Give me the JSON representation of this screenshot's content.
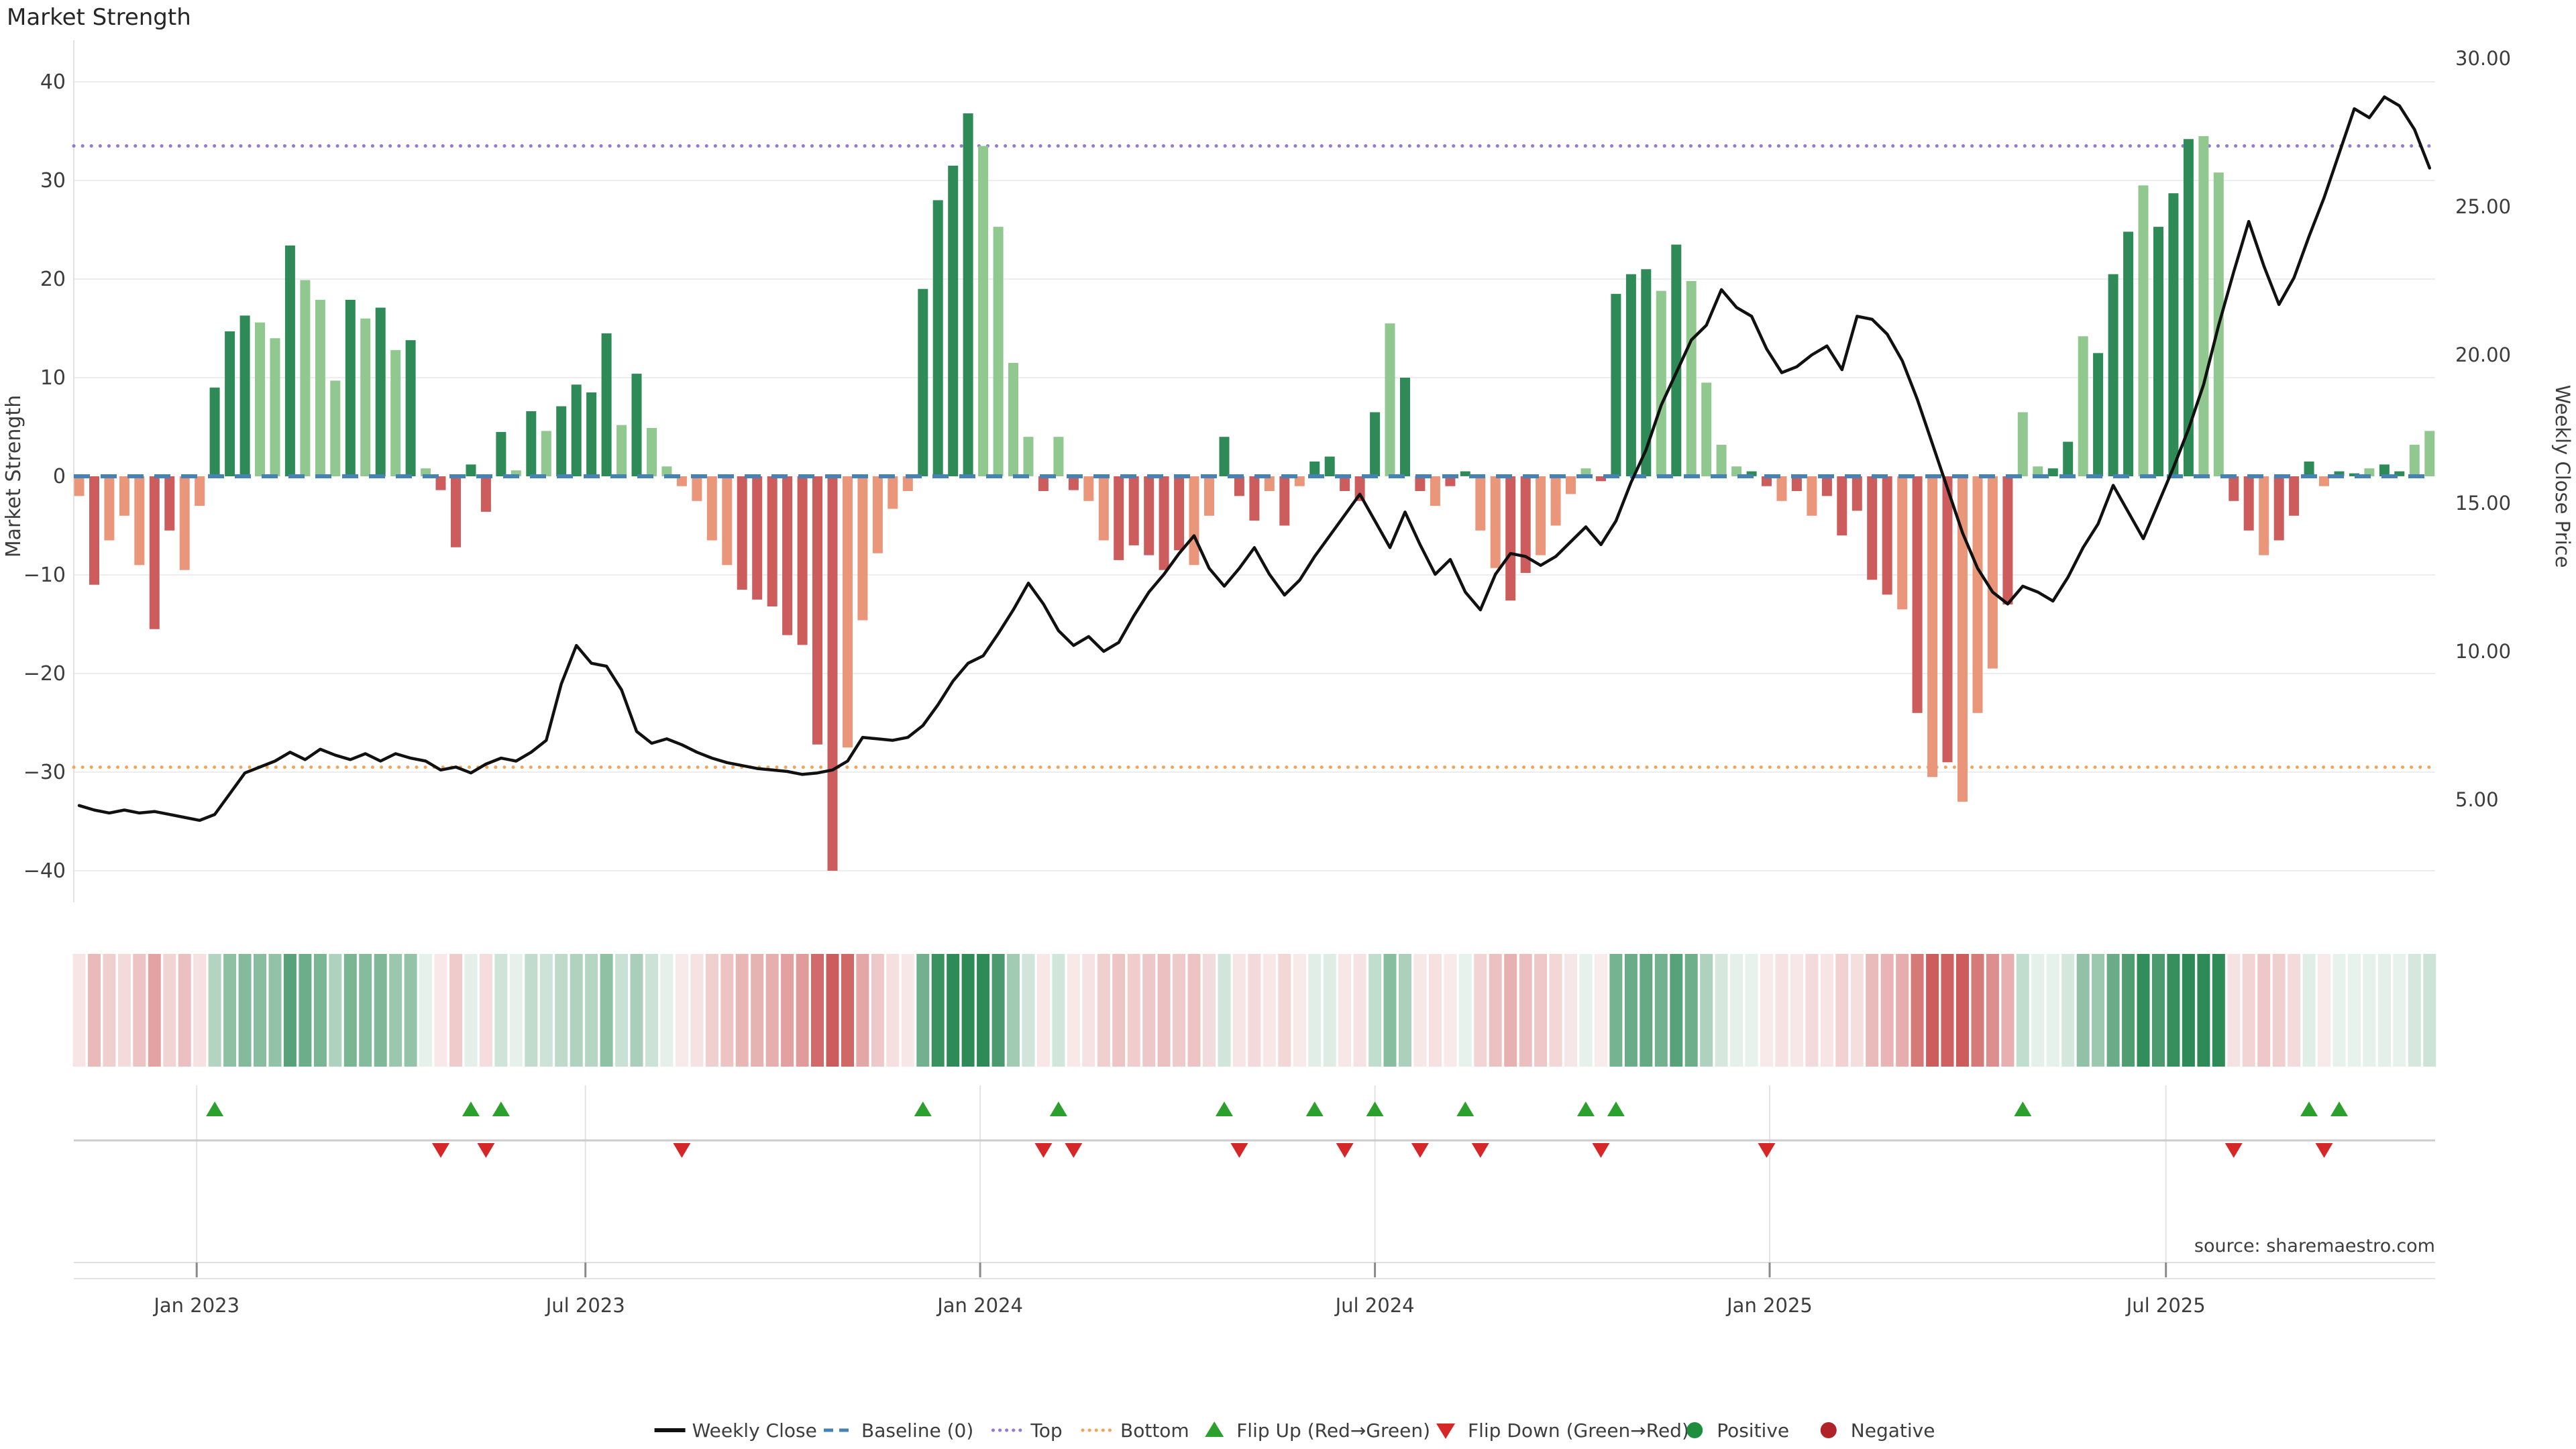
{
  "title": "Market Strength",
  "source": "source: sharemaestro.com",
  "axes": {
    "left_title": "Market Strength",
    "right_title": "Weekly Close Price",
    "left_ticks": [
      "40",
      "30",
      "20",
      "10",
      "0",
      "−10",
      "−20",
      "−30",
      "−40"
    ],
    "left_tick_values": [
      40,
      30,
      20,
      10,
      0,
      -10,
      -20,
      -30,
      -40
    ],
    "right_ticks": [
      "30.00",
      "25.00",
      "20.00",
      "15.00",
      "10.00",
      "5.00"
    ],
    "right_tick_values": [
      30,
      25,
      20,
      15,
      10,
      5
    ],
    "x_ticks": [
      "Jan 2023",
      "Jul 2023",
      "Jan 2024",
      "Jul 2024",
      "Jan 2025",
      "Jul 2025"
    ],
    "x_tick_weeks": [
      7.8,
      33.6,
      59.8,
      86.0,
      112.2,
      138.5
    ]
  },
  "legend": [
    {
      "label": "Weekly Close",
      "glyph": "line",
      "color": "#111111"
    },
    {
      "label": "Baseline (0)",
      "glyph": "dash",
      "color": "#4682b4"
    },
    {
      "label": "Top",
      "glyph": "dots",
      "color": "#9678d8"
    },
    {
      "label": "Bottom",
      "glyph": "dots",
      "color": "#f0a55f"
    },
    {
      "label": "Flip Up (Red→Green)",
      "glyph": "tri-up",
      "color": "#2ca02c"
    },
    {
      "label": "Flip Down (Green→Red)",
      "glyph": "tri-down",
      "color": "#d62728"
    },
    {
      "label": "Positive",
      "glyph": "circle",
      "color": "#1e8e3e"
    },
    {
      "label": "Negative",
      "glyph": "circle",
      "color": "#b02328"
    }
  ],
  "colors": {
    "bar_pos_dark": "#2e8b57",
    "bar_pos_light": "#90c890",
    "bar_neg_dark": "#cd5c5c",
    "bar_neg_light": "#e9967a",
    "baseline": "#4682b4",
    "top_line": "#9678d8",
    "bottom_line": "#f0a55f",
    "price_line": "#111111",
    "flip_up": "#2ca02c",
    "flip_down": "#d62728",
    "grid": "#ededed",
    "source_text": "#b3b3b3"
  },
  "chart_data": {
    "type": "bar",
    "subtype": "bar+line dual-axis weekly, with heatmap strip and flip markers",
    "title": "Market Strength",
    "xlabel": "",
    "ylabel_left": "Market Strength",
    "ylabel_right": "Weekly Close Price",
    "ylim_left": [
      -40,
      40
    ],
    "ylim_right_ticks": [
      5,
      30
    ],
    "weeks": 157,
    "reference_lines": {
      "baseline": 0,
      "top": 33.5,
      "bottom": -29.5
    },
    "series": [
      {
        "name": "Market Strength",
        "type": "bar",
        "values": [
          -2,
          -11,
          -6.5,
          -4,
          -9,
          -15.5,
          -5.5,
          -9.5,
          -3,
          9,
          14.7,
          16.3,
          15.6,
          14,
          23.4,
          19.9,
          17.9,
          9.7,
          17.9,
          16,
          17.1,
          12.8,
          13.8,
          0.8,
          -1.4,
          -7.2,
          1.2,
          -3.6,
          4.5,
          0.6,
          6.6,
          4.6,
          7.1,
          9.3,
          8.5,
          14.5,
          5.2,
          10.4,
          4.9,
          1,
          -1,
          -2.5,
          -6.5,
          -9,
          -11.5,
          -12.5,
          -13.2,
          -16.1,
          -17.1,
          -27.2,
          -40,
          -27.5,
          -14.6,
          -7.8,
          -3.3,
          -1.5,
          19,
          28,
          31.5,
          36.8,
          33.5,
          25.3,
          11.5,
          4,
          -1.5,
          4,
          -1.4,
          -2.5,
          -6.5,
          -8.5,
          -7,
          -8,
          -9.5,
          -7.5,
          -9,
          -4,
          4,
          -2,
          -4.5,
          -1.5,
          -5,
          -1,
          1.5,
          2,
          -1.5,
          -2.5,
          6.5,
          15.5,
          10,
          -1.5,
          -3,
          -1,
          0.5,
          -5.5,
          -9.3,
          -12.6,
          -9.8,
          -8,
          -5,
          -1.8,
          0.8,
          -0.5,
          18.5,
          20.5,
          21,
          18.8,
          23.5,
          19.8,
          9.5,
          3.2,
          1,
          0.5,
          -1,
          -2.5,
          -1.5,
          -4,
          -2,
          -6,
          -3.5,
          -10.5,
          -12,
          -13.5,
          -24,
          -30.5,
          -29,
          -33,
          -24,
          -19.5,
          -13,
          6.5,
          1,
          0.8,
          3.5,
          14.2,
          12.5,
          20.5,
          24.8,
          29.5,
          25.3,
          28.7,
          34.2,
          34.5,
          30.8,
          -2.5,
          -5.5,
          -8,
          -6.5,
          -4,
          1.5,
          -1,
          0.5,
          0.3,
          0.8,
          1.2,
          0.5,
          3.2,
          4.6
        ],
        "tone": "ldlllddlldddlldllldldldldddddldlddddldlllllldddddddlllllddddlllldldlldddddlldddldldddddlddlddllddllllddddldllllddldldddddldldllldllddldddldddllddldddlddldd"
      },
      {
        "name": "Weekly Close",
        "type": "line",
        "values": [
          4.8,
          4.65,
          4.55,
          4.65,
          4.55,
          4.6,
          4.5,
          4.4,
          4.3,
          4.5,
          5.2,
          5.9,
          6.1,
          6.3,
          6.6,
          6.35,
          6.7,
          6.5,
          6.35,
          6.55,
          6.3,
          6.55,
          6.4,
          6.3,
          6.0,
          6.1,
          5.9,
          6.2,
          6.4,
          6.3,
          6.6,
          7.0,
          8.9,
          10.2,
          9.6,
          9.5,
          8.7,
          7.3,
          6.9,
          7.05,
          6.85,
          6.6,
          6.4,
          6.25,
          6.15,
          6.05,
          6.0,
          5.95,
          5.85,
          5.9,
          6.0,
          6.3,
          7.1,
          7.05,
          7.0,
          7.1,
          7.5,
          8.2,
          9.0,
          9.6,
          9.85,
          10.6,
          11.4,
          12.3,
          11.6,
          10.7,
          10.2,
          10.5,
          10.0,
          10.3,
          11.2,
          12.0,
          12.6,
          13.3,
          13.9,
          12.8,
          12.2,
          12.8,
          13.5,
          12.6,
          11.9,
          12.4,
          13.2,
          13.9,
          14.6,
          15.3,
          14.4,
          13.5,
          14.7,
          13.6,
          12.6,
          13.1,
          12.0,
          11.4,
          12.6,
          13.3,
          13.2,
          12.9,
          13.2,
          13.7,
          14.2,
          13.6,
          14.4,
          15.7,
          16.8,
          18.3,
          19.4,
          20.5,
          21.0,
          22.2,
          21.6,
          21.3,
          20.2,
          19.4,
          19.6,
          20.0,
          20.3,
          19.5,
          21.3,
          21.2,
          20.7,
          19.8,
          18.5,
          17.0,
          15.5,
          14.0,
          12.8,
          12.0,
          11.6,
          12.2,
          12.0,
          11.7,
          12.5,
          13.5,
          14.3,
          15.6,
          14.7,
          13.8,
          15.0,
          16.2,
          17.5,
          19.0,
          21.0,
          22.8,
          24.5,
          23.0,
          21.7,
          22.6,
          24.0,
          25.3,
          26.8,
          28.3,
          28.0,
          28.7,
          28.4,
          27.6,
          26.3
        ]
      }
    ],
    "markers": {
      "flip_up_weeks": [
        9,
        26,
        28,
        56,
        65,
        76,
        82,
        86,
        92,
        100,
        102,
        129,
        148,
        150
      ],
      "flip_down_weeks": [
        24,
        27,
        40,
        64,
        66,
        77,
        84,
        89,
        93,
        101,
        112,
        143,
        149
      ]
    },
    "heatmap": "derived from Market Strength values (red negative → green positive, intensity ∝ |value|)",
    "grid": "horizontal light gridlines every 10 strength units; vertical gridlines at half-year ticks in lower panels",
    "legend_position": "bottom center"
  }
}
